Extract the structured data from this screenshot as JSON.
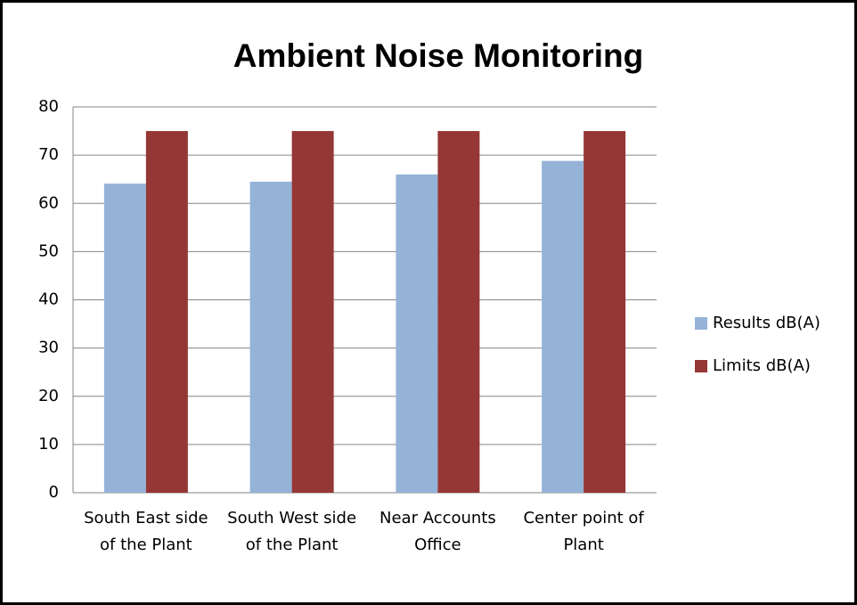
{
  "chart_data": {
    "type": "bar",
    "title": "Ambient Noise Monitoring",
    "categories": [
      "South East side of the Plant",
      "South West side of the Plant",
      "Near Accounts Office",
      "Center point of Plant"
    ],
    "series": [
      {
        "name": "Results dB(A)",
        "color": "#95b3d7",
        "values": [
          64.1,
          64.5,
          66,
          68.8
        ]
      },
      {
        "name": "Limits dB(A)",
        "color": "#953735",
        "values": [
          75,
          75,
          75,
          75
        ]
      }
    ],
    "ylim": [
      0,
      80
    ],
    "yticks": [
      0,
      10,
      20,
      30,
      40,
      50,
      60,
      70,
      80
    ],
    "grid": true,
    "legend": "right"
  }
}
